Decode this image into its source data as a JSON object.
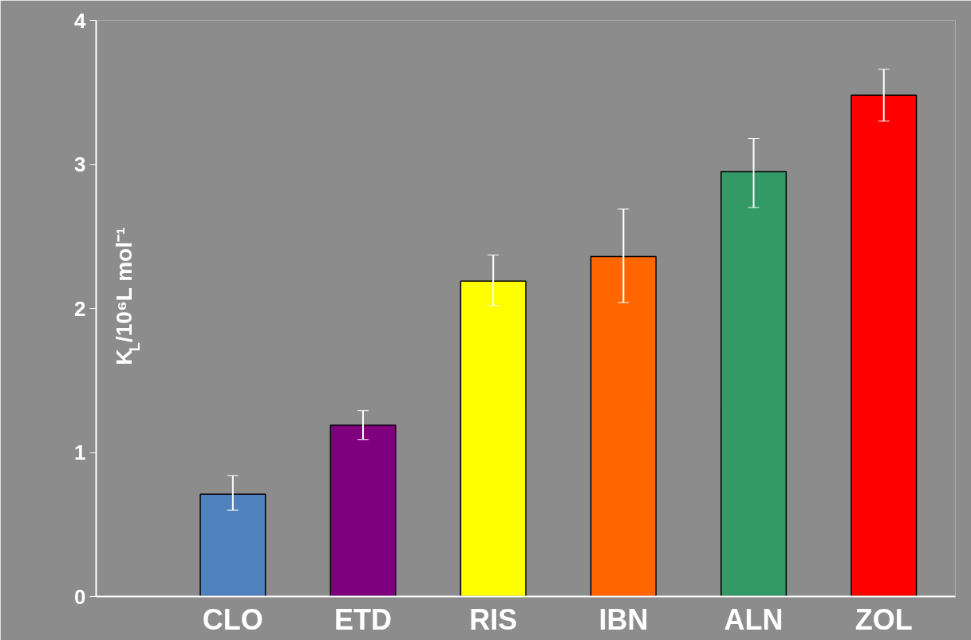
{
  "chart_data": {
    "type": "bar",
    "ylabel": "K$_{L}$/10⁶L mol⁻¹",
    "categories": [
      "CLO",
      "ETD",
      "RIS",
      "IBN",
      "ALN",
      "ZOL"
    ],
    "values": [
      0.71,
      1.19,
      2.19,
      2.36,
      2.95,
      3.48
    ],
    "colors": [
      "#4f81bd",
      "#7f007f",
      "#ffff00",
      "#ff6600",
      "#339966",
      "#ff0000"
    ],
    "errors": [
      [
        0.6,
        0.84
      ],
      [
        1.09,
        1.29
      ],
      [
        2.02,
        2.37
      ],
      [
        2.04,
        2.69
      ],
      [
        2.7,
        3.18
      ],
      [
        3.3,
        3.66
      ]
    ],
    "ylim": [
      0,
      4
    ],
    "yticks": [
      0,
      1,
      2,
      3,
      4
    ],
    "grid": false
  }
}
